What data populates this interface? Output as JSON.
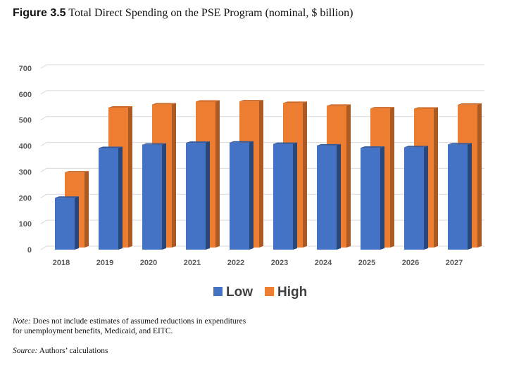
{
  "figure": {
    "number": "Figure 3.5",
    "title": "Total Direct Spending on the PSE Program (nominal, $ billion)"
  },
  "chart_data": {
    "type": "bar",
    "title": "Total Direct Spending on the PSE Program (nominal, $ billion)",
    "categories": [
      "2018",
      "2019",
      "2020",
      "2021",
      "2022",
      "2023",
      "2024",
      "2025",
      "2026",
      "2027"
    ],
    "series": [
      {
        "name": "Low",
        "color": "#4472C4",
        "values": [
          200,
          392,
          405,
          412,
          413,
          408,
          402,
          393,
          395,
          406
        ]
      },
      {
        "name": "High",
        "color": "#ED7D31",
        "values": [
          290,
          540,
          552,
          563,
          564,
          558,
          547,
          537,
          536,
          551
        ]
      }
    ],
    "yticks": [
      "0",
      "100",
      "200",
      "300",
      "400",
      "500",
      "600",
      "700"
    ],
    "ylim": [
      0,
      700
    ],
    "grid": true,
    "legend": "bottom",
    "xlabel": "",
    "ylabel": ""
  },
  "notes": {
    "note_label": "Note:",
    "note_text": "Does not include estimates of assumed reductions in expenditures",
    "note_text2": "for unemployment benefits, Medicaid, and EITC.",
    "source_label": "Source:",
    "source_text": "Authors’ calculations"
  }
}
